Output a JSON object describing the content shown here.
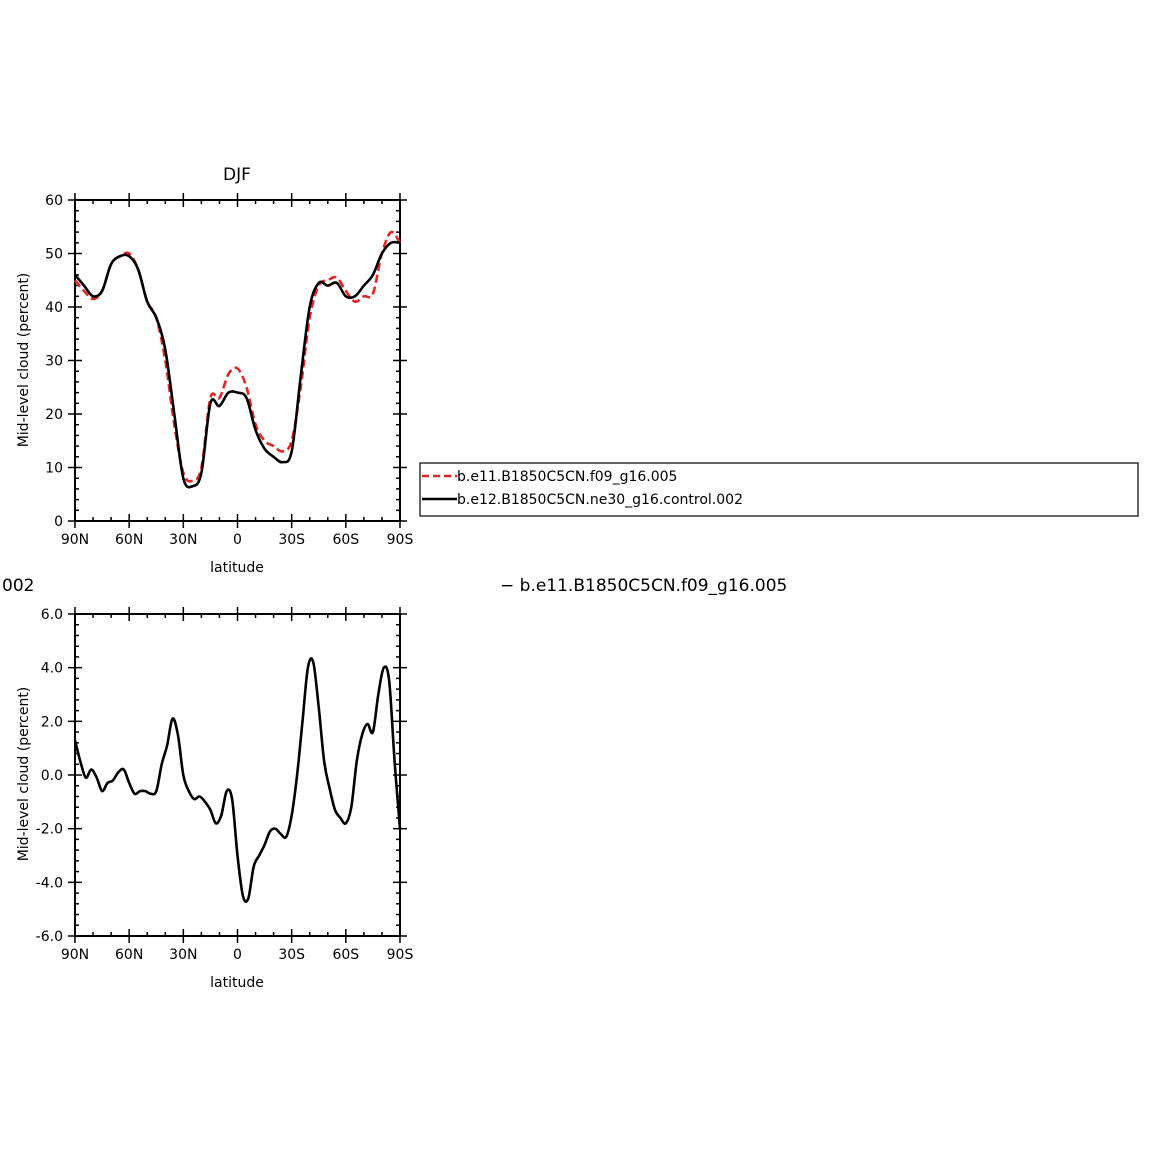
{
  "chart_data": [
    {
      "type": "line",
      "title": "DJF",
      "xlabel": "latitude",
      "ylabel": "Mid-level cloud (percent)",
      "xlim": [
        -90,
        90
      ],
      "ylim": [
        0,
        60
      ],
      "x_direction": "north-to-south (90N on left)",
      "xtick_labels": [
        "90N",
        "60N",
        "30N",
        "0",
        "30S",
        "60S",
        "90S"
      ],
      "ytick_labels": [
        "0",
        "10",
        "20",
        "30",
        "40",
        "50",
        "60"
      ],
      "legend": {
        "placement": "right of plot",
        "entries": [
          "b.e11.B1850C5CN.f09_g16.005",
          "b.e12.B1850C5CN.ne30_g16.control.002"
        ]
      },
      "x": [
        90,
        85,
        80,
        75,
        70,
        65,
        60,
        55,
        50,
        45,
        40,
        35,
        30,
        25,
        20,
        15,
        10,
        5,
        0,
        -5,
        -10,
        -15,
        -20,
        -25,
        -30,
        -35,
        -40,
        -45,
        -50,
        -55,
        -60,
        -65,
        -70,
        -75,
        -80,
        -85,
        -90
      ],
      "series": [
        {
          "name": "b.e11.B1850C5CN.f09_g16.005",
          "color": "#e8231f",
          "dash": "dashed",
          "values": [
            45,
            43,
            41.5,
            43,
            48,
            49.5,
            50,
            47,
            41,
            38,
            30,
            18,
            9,
            7.5,
            10,
            23,
            23,
            27.5,
            28.5,
            25,
            18,
            15,
            14,
            13,
            15,
            25,
            38,
            44,
            45,
            45.5,
            43,
            41,
            42,
            42.5,
            50,
            54,
            52
          ]
        },
        {
          "name": "b.e12.B1850C5CN.ne30_g16.control.002",
          "color": "#000000",
          "dash": "solid",
          "values": [
            46,
            44,
            42,
            43,
            48,
            49.5,
            49.5,
            47,
            41,
            38,
            32,
            20,
            8,
            6.5,
            9,
            22,
            21.5,
            24,
            24,
            23,
            17,
            13.5,
            12,
            11,
            13,
            27,
            40,
            44.5,
            44,
            44.5,
            42,
            42,
            44,
            46,
            50,
            52,
            52
          ]
        }
      ]
    },
    {
      "type": "line",
      "title": "",
      "xlabel": "latitude",
      "ylabel": "Mid-level cloud (percent)",
      "xlim": [
        -90,
        90
      ],
      "ylim": [
        -6,
        6
      ],
      "x_direction": "north-to-south (90N on left)",
      "xtick_labels": [
        "90N",
        "60N",
        "30N",
        "0",
        "30S",
        "60S",
        "90S"
      ],
      "ytick_labels": [
        "-6.0",
        "-4.0",
        "-2.0",
        "0.0",
        "2.0",
        "4.0",
        "6.0"
      ],
      "top_left_label": "002",
      "top_right_label": "− b.e11.B1850C5CN.f09_g16.005",
      "x": [
        90,
        87,
        84,
        81,
        78,
        75,
        72,
        69,
        66,
        63,
        60,
        57,
        54,
        51,
        48,
        45,
        42,
        39,
        36,
        33,
        30,
        27,
        24,
        21,
        18,
        15,
        12,
        9,
        6,
        3,
        0,
        -3,
        -6,
        -9,
        -12,
        -15,
        -18,
        -21,
        -24,
        -27,
        -30,
        -33,
        -36,
        -39,
        -42,
        -45,
        -48,
        -51,
        -54,
        -57,
        -60,
        -63,
        -66,
        -69,
        -72,
        -75,
        -78,
        -81,
        -84,
        -87,
        -90
      ],
      "series": [
        {
          "name": "",
          "color": "#000000",
          "dash": "solid",
          "values": [
            1.3,
            0.5,
            -0.1,
            0.2,
            -0.1,
            -0.6,
            -0.3,
            -0.2,
            0.1,
            0.2,
            -0.3,
            -0.7,
            -0.6,
            -0.6,
            -0.7,
            -0.6,
            0.4,
            1.1,
            2.1,
            1.5,
            0.0,
            -0.6,
            -0.9,
            -0.8,
            -1.0,
            -1.3,
            -1.8,
            -1.5,
            -0.6,
            -0.9,
            -3.0,
            -4.5,
            -4.6,
            -3.4,
            -3.0,
            -2.6,
            -2.1,
            -2.0,
            -2.2,
            -2.3,
            -1.5,
            0.0,
            2.0,
            4.0,
            4.2,
            2.5,
            0.5,
            -0.5,
            -1.3,
            -1.6,
            -1.8,
            -1.2,
            0.5,
            1.5,
            1.9,
            1.6,
            3.0,
            4.0,
            3.5,
            0.5,
            -2.0
          ]
        }
      ]
    }
  ]
}
